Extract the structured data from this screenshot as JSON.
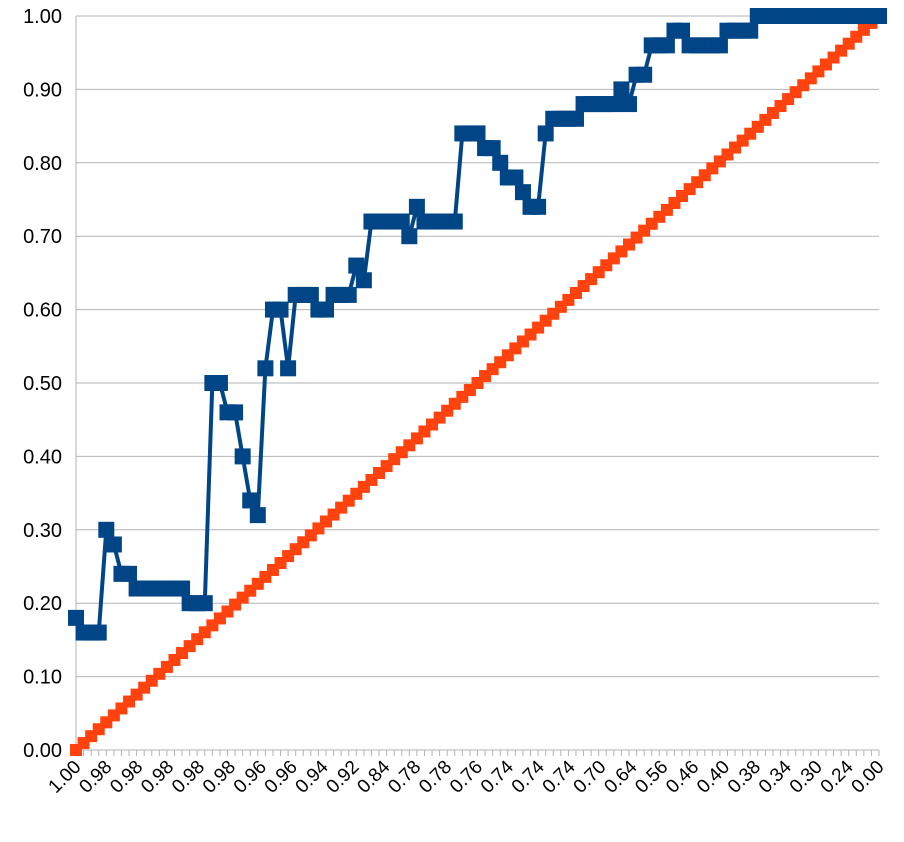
{
  "chart_data": {
    "type": "line",
    "title": "",
    "xlabel": "",
    "ylabel": "",
    "ylim": [
      0,
      1
    ],
    "yticks": [
      "0.00",
      "0.10",
      "0.20",
      "0.30",
      "0.40",
      "0.50",
      "0.60",
      "0.70",
      "0.80",
      "0.90",
      "1.00"
    ],
    "grid": true,
    "legend": "none",
    "xticks": [
      "1.00",
      "0.98",
      "0.98",
      "0.98",
      "0.98",
      "0.98",
      "0.96",
      "0.96",
      "0.94",
      "0.92",
      "0.84",
      "0.78",
      "0.78",
      "0.76",
      "0.74",
      "0.74",
      "0.74",
      "0.70",
      "0.64",
      "0.56",
      "0.46",
      "0.40",
      "0.38",
      "0.34",
      "0.30",
      "0.24",
      "0.00"
    ],
    "series": [
      {
        "color": "#004586",
        "marker": "square",
        "values": [
          0.18,
          0.16,
          0.16,
          0.16,
          0.3,
          0.28,
          0.24,
          0.24,
          0.22,
          0.22,
          0.22,
          0.22,
          0.22,
          0.22,
          0.22,
          0.2,
          0.2,
          0.2,
          0.5,
          0.5,
          0.46,
          0.46,
          0.4,
          0.34,
          0.32,
          0.52,
          0.6,
          0.6,
          0.52,
          0.62,
          0.62,
          0.62,
          0.6,
          0.6,
          0.62,
          0.62,
          0.62,
          0.66,
          0.64,
          0.72,
          0.72,
          0.72,
          0.72,
          0.72,
          0.7,
          0.74,
          0.72,
          0.72,
          0.72,
          0.72,
          0.72,
          0.84,
          0.84,
          0.84,
          0.82,
          0.82,
          0.8,
          0.78,
          0.78,
          0.76,
          0.74,
          0.74,
          0.84,
          0.86,
          0.86,
          0.86,
          0.86,
          0.88,
          0.88,
          0.88,
          0.88,
          0.88,
          0.9,
          0.88,
          0.92,
          0.92,
          0.96,
          0.96,
          0.96,
          0.98,
          0.98,
          0.96,
          0.96,
          0.96,
          0.96,
          0.96,
          0.98,
          0.98,
          0.98,
          0.98,
          1.0,
          1.0,
          1.0,
          1.0,
          1.0,
          1.0,
          1.0,
          1.0,
          1.0,
          1.0,
          1.0,
          1.0,
          1.0,
          1.0,
          1.0,
          1.0,
          1.0
        ]
      },
      {
        "color": "#ff420e",
        "marker": "square",
        "values_linear": [
          0,
          1
        ]
      }
    ]
  }
}
